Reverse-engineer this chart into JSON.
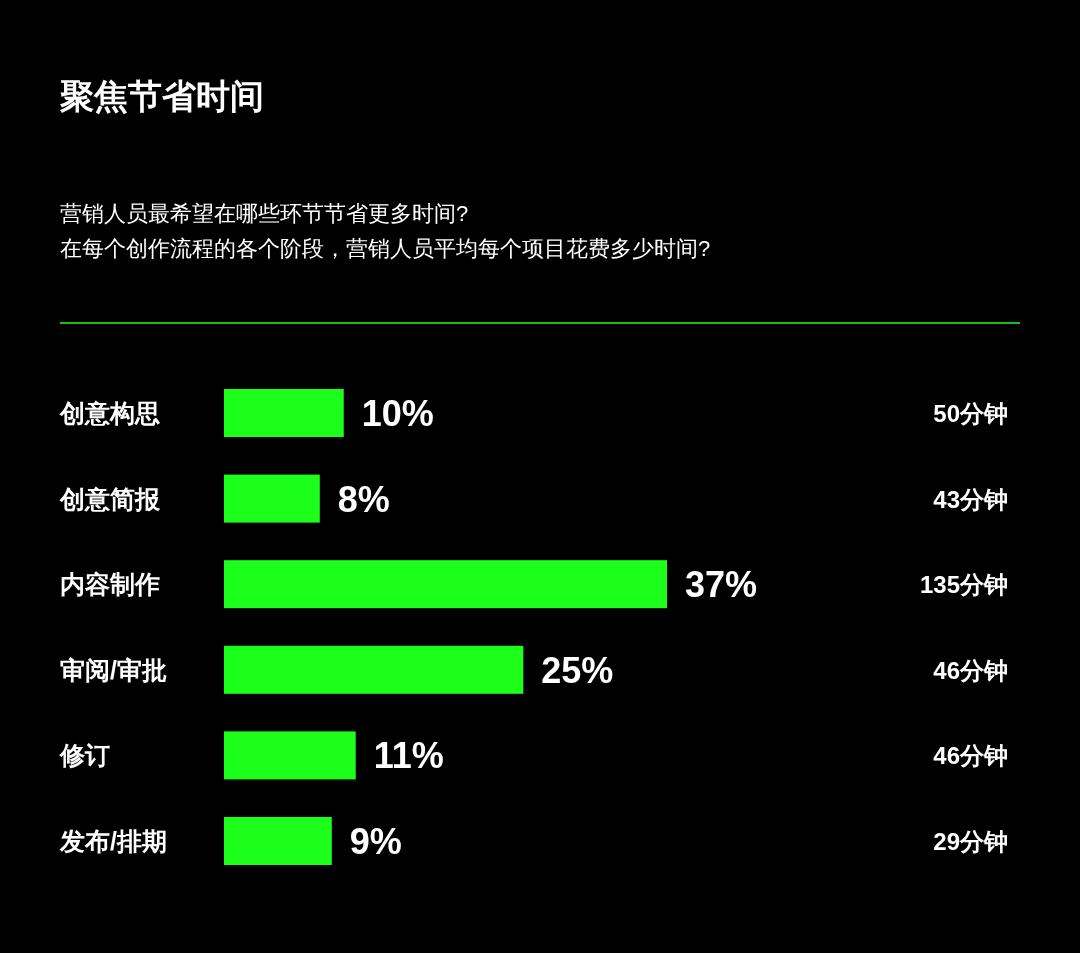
{
  "chart_data": [
    {
      "type": "bar",
      "orientation": "horizontal",
      "title": "聚焦节省时间",
      "subtitle": "营销人员最希望在哪些环节节省更多时间?\n在每个创作流程的各个阶段，营销人员平均每个项目花费多少时间?",
      "categories": [
        "创意构思",
        "创意简报",
        "内容制作",
        "审阅/审批",
        "修订",
        "发布/排期"
      ],
      "values": [
        10,
        8,
        37,
        25,
        11,
        9
      ],
      "color": "#1bff1b",
      "value_labels": [
        "10%",
        "8%",
        "37%",
        "25%",
        "11%",
        "9%"
      ]
    },
    {
      "type": "other",
      "categories": [
        null,
        null,
        null,
        null,
        null,
        null
      ],
      "values": [
        50,
        43,
        135,
        46,
        46,
        29
      ],
      "value_labels": [
        "50分钟",
        "43分钟",
        "135分钟",
        "46分钟",
        "46分钟",
        "29分钟"
      ]
    }
  ]
}
